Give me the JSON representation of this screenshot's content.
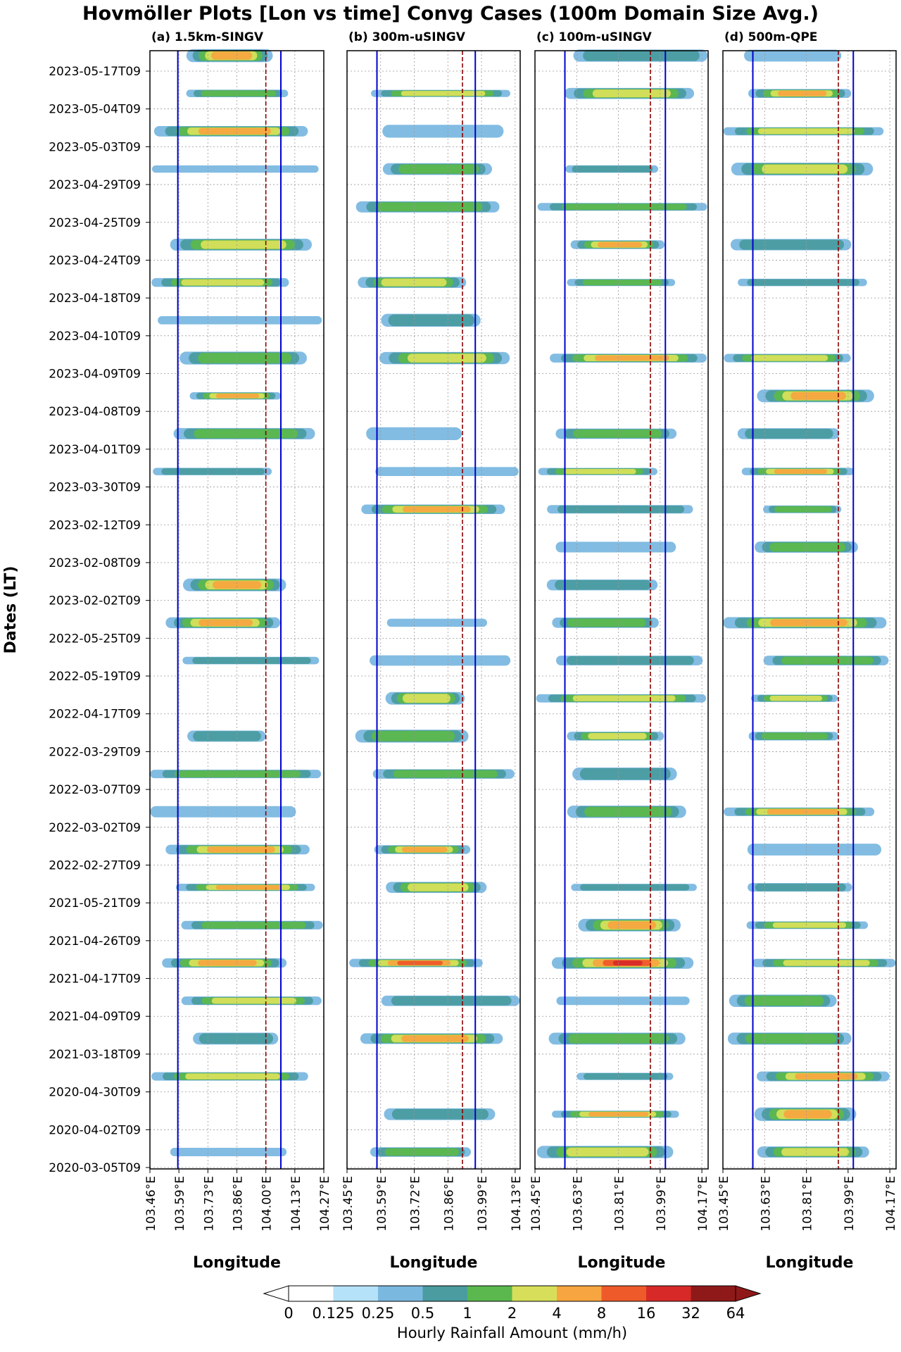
{
  "figure": {
    "title": "Hovmöller Plots [Lon vs time] Convg Cases (100m Domain Size Avg.)",
    "ylabel": "Dates (LT)"
  },
  "chart_data": {
    "type": "heatmap",
    "dates": [
      "2023-05-17T09",
      "2023-05-04T09",
      "2023-05-03T09",
      "2023-04-29T09",
      "2023-04-25T09",
      "2023-04-24T09",
      "2023-04-18T09",
      "2023-04-10T09",
      "2023-04-09T09",
      "2023-04-08T09",
      "2023-04-01T09",
      "2023-03-30T09",
      "2023-02-12T09",
      "2023-02-08T09",
      "2023-02-02T09",
      "2022-05-25T09",
      "2022-05-19T09",
      "2022-04-17T09",
      "2022-03-29T09",
      "2022-03-07T09",
      "2022-03-02T09",
      "2022-02-27T09",
      "2021-05-21T09",
      "2021-04-26T09",
      "2021-04-17T09",
      "2021-04-09T09",
      "2021-03-18T09",
      "2020-04-30T09",
      "2020-04-02T09",
      "2020-03-05T09"
    ],
    "panels": [
      {
        "title": "(a) 1.5km-SINGV",
        "xlabel": "Longitude",
        "xlim": [
          103.46,
          104.27
        ],
        "xticks": [
          "103.46°E",
          "103.59°E",
          "103.73°E",
          "103.86°E",
          "104.00°E",
          "104.13°E",
          "104.27°E"
        ],
        "blue_lines": [
          103.59,
          104.07
        ],
        "red_dashed_line": 104.0
      },
      {
        "title": "(b) 300m-uSINGV",
        "xlabel": "Longitude",
        "xlim": [
          103.45,
          104.26
        ],
        "xticks": [
          "103.45°E",
          "103.59°E",
          "103.72°E",
          "103.86°E",
          "103.99°E",
          "104.13°E"
        ],
        "blue_lines": [
          103.59,
          104.05
        ],
        "red_dashed_line": 103.99
      },
      {
        "title": "(c) 100m-uSINGV",
        "xlabel": "Longitude",
        "xlim": [
          103.45,
          104.26
        ],
        "xticks": [
          "103.45°E",
          "103.63°E",
          "103.81°E",
          "103.99°E",
          "104.17°E"
        ],
        "blue_lines": [
          103.59,
          104.06
        ],
        "red_dashed_line": 103.99
      },
      {
        "title": "(d) 500m-QPE",
        "xlabel": "Longitude",
        "xlim": [
          103.45,
          104.26
        ],
        "xticks": [
          "103.45°E",
          "103.63°E",
          "103.81°E",
          "103.99°E",
          "104.17°E"
        ],
        "blue_lines": [
          103.59,
          104.06
        ],
        "red_dashed_line": 103.99
      }
    ],
    "colorbar": {
      "label": "Hourly Rainfall Amount (mm/h)",
      "levels": [
        "0",
        "0.125",
        "0.25",
        "0.5",
        "1",
        "2",
        "4",
        "8",
        "16",
        "32",
        "64"
      ],
      "colors": [
        "#ffffff",
        "#b5e2f8",
        "#7bb8e0",
        "#4a9ca0",
        "#5bb84e",
        "#d7df5a",
        "#f6a540",
        "#ee5a2a",
        "#d72a28",
        "#8f1919"
      ],
      "extend": "both"
    },
    "grid": true
  }
}
